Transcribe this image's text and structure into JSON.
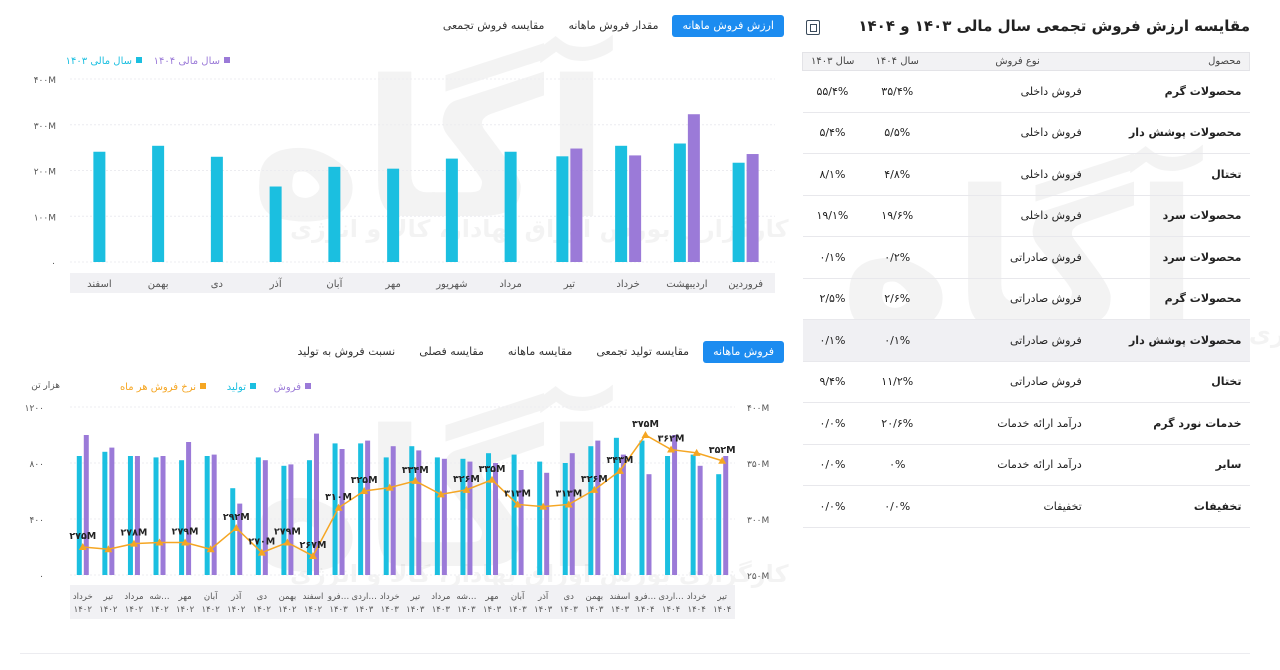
{
  "right_panel": {
    "title": "مقایسه ارزش فروش تجمعی سال مالی ۱۴۰۳ و ۱۴۰۴",
    "excel_icon": "excel-export-icon",
    "columns": [
      "محصول",
      "نوع فروش",
      "سال ۱۴۰۴",
      "سال ۱۴۰۳"
    ],
    "rows": [
      {
        "product": "محصولات گرم",
        "type": "فروش داخلی",
        "y1404": "۳۵/۴%",
        "y1403": "۵۵/۴%"
      },
      {
        "product": "محصولات پوشش دار",
        "type": "فروش داخلی",
        "y1404": "۵/۵%",
        "y1403": "۵/۴%"
      },
      {
        "product": "تختال",
        "type": "فروش داخلی",
        "y1404": "۴/۸%",
        "y1403": "۸/۱%"
      },
      {
        "product": "محصولات سرد",
        "type": "فروش داخلی",
        "y1404": "۱۹/۶%",
        "y1403": "۱۹/۱%"
      },
      {
        "product": "محصولات سرد",
        "type": "فروش صادراتی",
        "y1404": "۰/۲%",
        "y1403": "۰/۱%"
      },
      {
        "product": "محصولات گرم",
        "type": "فروش صادراتی",
        "y1404": "۲/۶%",
        "y1403": "۲/۵%"
      },
      {
        "product": "محصولات پوشش دار",
        "type": "فروش صادراتی",
        "y1404": "۰/۱%",
        "y1403": "۰/۱%"
      },
      {
        "product": "تختال",
        "type": "فروش صادراتی",
        "y1404": "۱۱/۲%",
        "y1403": "۹/۴%"
      },
      {
        "product": "خدمات نورد گرم",
        "type": "درآمد ارائه خدمات",
        "y1404": "۲۰/۶%",
        "y1403": "۰/۰%"
      },
      {
        "product": "سایر",
        "type": "درآمد ارائه خدمات",
        "y1404": "۰%",
        "y1403": "۰/۰%"
      },
      {
        "product": "تخفیفات",
        "type": "تخفیفات",
        "y1404": "۰/۰%",
        "y1403": "۰/۰%"
      }
    ],
    "highlighted_row": 6
  },
  "tabs_top": [
    {
      "label": "ارزش فروش ماهانه",
      "active": true
    },
    {
      "label": "مقدار فروش ماهانه",
      "active": false
    },
    {
      "label": "مقایسه فروش تجمعی",
      "active": false
    }
  ],
  "tabs_bottom": [
    {
      "label": "فروش ماهانه",
      "active": true
    },
    {
      "label": "مقایسه تولید تجمعی",
      "active": false
    },
    {
      "label": "مقایسه ماهانه",
      "active": false
    },
    {
      "label": "مقایسه فصلی",
      "active": false
    },
    {
      "label": "نسبت فروش به تولید",
      "active": false
    }
  ],
  "watermark": {
    "logo_text": "آگاه",
    "tagline": "کارگزاری بورس اوراق بهادار، کالا و انرژی"
  },
  "colors": {
    "series_1403": "#1bbfe0",
    "series_1404": "#9b7ad8",
    "production": "#1bbfe0",
    "sales": "#9b7ad8",
    "rate_line": "#f5a623",
    "active_tab": "#1c8cf0"
  },
  "chart_data": [
    {
      "type": "bar",
      "categories": [
        "فروردین",
        "اردیبهشت",
        "خرداد",
        "تیر",
        "مرداد",
        "شهریور",
        "مهر",
        "آبان",
        "آذر",
        "دی",
        "بهمن",
        "اسفند"
      ],
      "series": [
        {
          "name": "سال مالی ۱۴۰۳",
          "values": [
            217,
            259,
            254,
            231,
            241,
            226,
            204,
            208,
            165,
            230,
            254,
            241
          ]
        },
        {
          "name": "سال مالی ۱۴۰۴",
          "values": [
            236,
            323,
            233,
            248,
            null,
            null,
            null,
            null,
            null,
            null,
            null,
            null
          ]
        }
      ],
      "y_ticks": [
        "۴۰۰M",
        "۳۰۰M",
        "۲۰۰M",
        "۱۰۰M",
        "۰"
      ],
      "ylim": [
        0,
        400
      ],
      "legend_position": "top-left",
      "grid": true
    },
    {
      "type": "bar+line",
      "categories": [
        "خرداد ۱۴۰۲",
        "تیر ۱۴۰۲",
        "مرداد ۱۴۰۲",
        "شه… ۱۴۰۲",
        "مهر ۱۴۰۲",
        "آبان ۱۴۰۲",
        "آذر ۱۴۰۲",
        "دی ۱۴۰۲",
        "بهمن ۱۴۰۲",
        "اسفند ۱۴۰۲",
        "فرو… ۱۴۰۳",
        "اردی… ۱۴۰۳",
        "خرداد ۱۴۰۳",
        "تیر ۱۴۰۳",
        "مرداد ۱۴۰۳",
        "شه… ۱۴۰۳",
        "مهر ۱۴۰۳",
        "آبان ۱۴۰۳",
        "آذر ۱۴۰۳",
        "دی ۱۴۰۳",
        "بهمن ۱۴۰۳",
        "اسفند ۱۴۰۳",
        "فرو… ۱۴۰۴",
        "اردی… ۱۴۰۴",
        "خرداد ۱۴۰۴",
        "تیر ۱۴۰۴"
      ],
      "left_axis_label": "هزار تن",
      "left_ticks": [
        "۱۲۰۰",
        "۸۰۰",
        "۴۰۰",
        "۰"
      ],
      "left_ylim": [
        0,
        1200
      ],
      "right_ticks": [
        "۴۰۰M",
        "۳۵۰M",
        "۳۰۰M",
        "۲۵۰M"
      ],
      "right_ylim": [
        250,
        400
      ],
      "series": [
        {
          "name": "تولید",
          "kind": "bar",
          "values": [
            850,
            880,
            850,
            840,
            820,
            850,
            620,
            840,
            780,
            820,
            940,
            940,
            840,
            920,
            840,
            830,
            870,
            860,
            810,
            800,
            920,
            980,
            960,
            850,
            860,
            720
          ]
        },
        {
          "name": "فروش",
          "kind": "bar",
          "values": [
            1000,
            910,
            850,
            850,
            950,
            860,
            510,
            820,
            790,
            1010,
            900,
            960,
            920,
            890,
            830,
            810,
            800,
            750,
            730,
            870,
            960,
            860,
            720,
            1000,
            780,
            850
          ]
        },
        {
          "name": "نرخ فروش هر ماه",
          "kind": "line",
          "axis": "right",
          "values": [
            275,
            273,
            278,
            279,
            279,
            273,
            292,
            270,
            279,
            267,
            310,
            325,
            328,
            334,
            322,
            326,
            335,
            313,
            311,
            313,
            326,
            343,
            375,
            362,
            359,
            352
          ]
        }
      ],
      "point_labels": [
        {
          "index": 0,
          "text": "۲۷۵M"
        },
        {
          "index": 2,
          "text": "۲۷۸M"
        },
        {
          "index": 4,
          "text": "۲۷۹M"
        },
        {
          "index": 6,
          "text": "۲۹۲M"
        },
        {
          "index": 7,
          "text": "۲۷۰M"
        },
        {
          "index": 8,
          "text": "۲۷۹M"
        },
        {
          "index": 9,
          "text": "۲۶۷M"
        },
        {
          "index": 10,
          "text": "۳۱۰M"
        },
        {
          "index": 11,
          "text": "۳۲۵M"
        },
        {
          "index": 13,
          "text": "۳۳۴M"
        },
        {
          "index": 15,
          "text": "۳۲۶M"
        },
        {
          "index": 16,
          "text": "۳۳۵M"
        },
        {
          "index": 17,
          "text": "۳۱۳M"
        },
        {
          "index": 19,
          "text": "۳۱۳M"
        },
        {
          "index": 20,
          "text": "۳۲۶M"
        },
        {
          "index": 21,
          "text": "۳۴۳M"
        },
        {
          "index": 22,
          "text": "۳۷۵M"
        },
        {
          "index": 23,
          "text": "۳۶۲M"
        },
        {
          "index": 25,
          "text": "۳۵۲M"
        }
      ],
      "legend_position": "top-left",
      "grid": true
    }
  ]
}
